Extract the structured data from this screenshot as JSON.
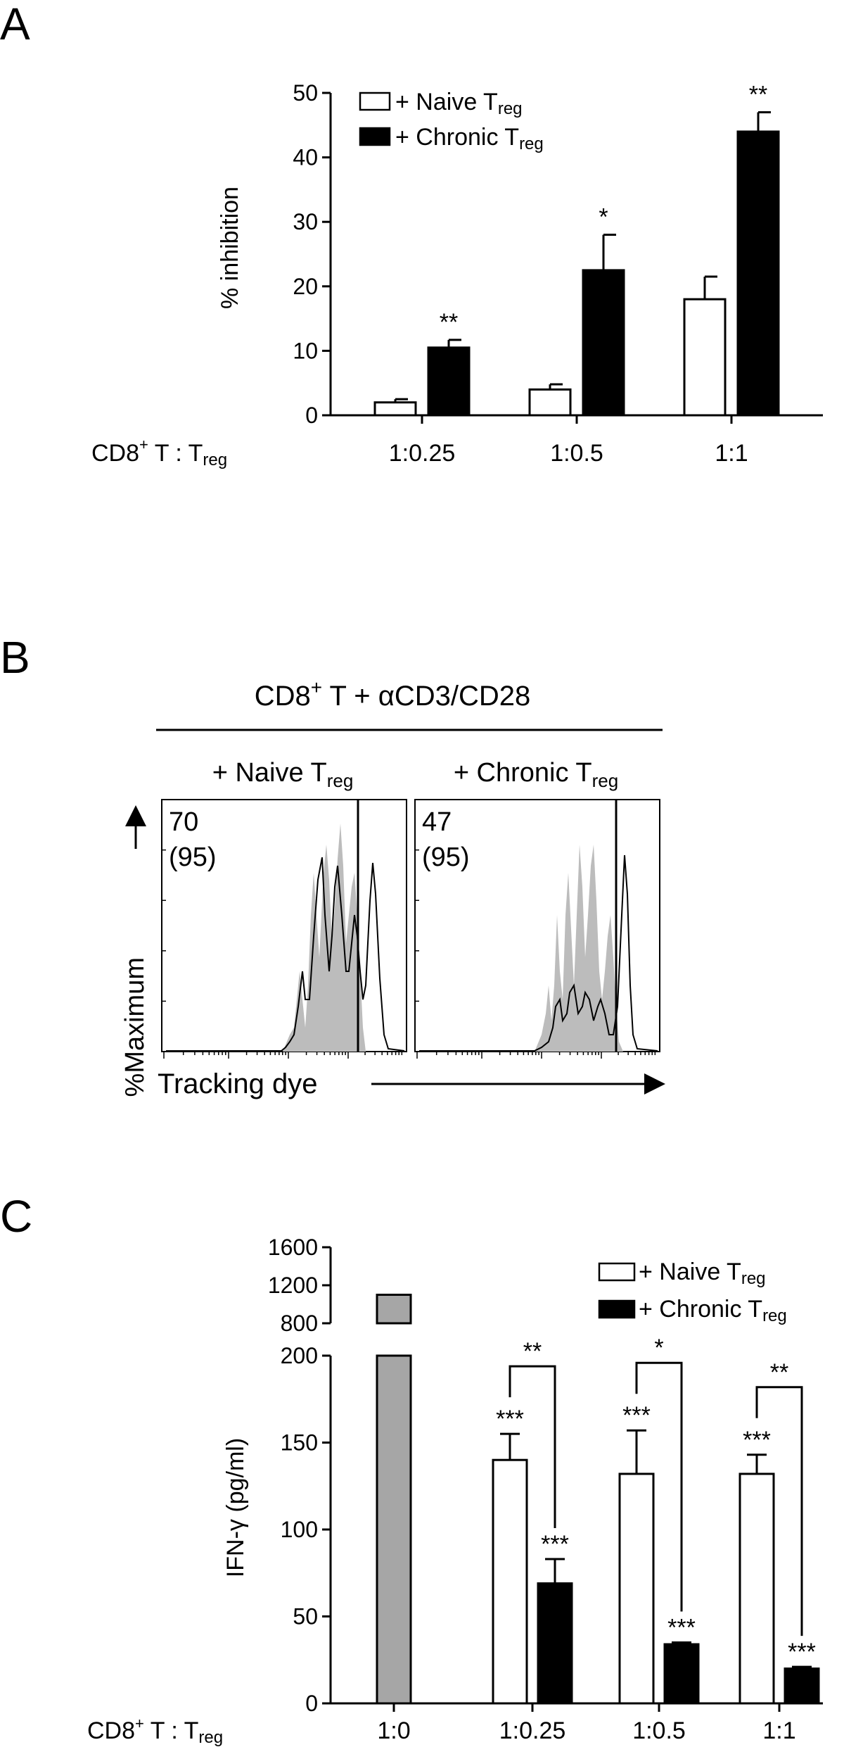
{
  "panels": {
    "a": "A",
    "b": "B",
    "c": "C"
  },
  "chart_data": [
    {
      "type": "bar",
      "panel": "A",
      "ylabel": "% inhibition",
      "ylim": [
        0,
        50
      ],
      "yticks": [
        "0",
        "10",
        "20",
        "30",
        "40",
        "50"
      ],
      "xlabel_main": "CD8",
      "xlabel_sup": "+",
      "xlabel_rest": " T : T",
      "xlabel_sub": "reg",
      "categories": [
        "1:0.25",
        "1:0.5",
        "1:1"
      ],
      "legend_position": "top-left",
      "series": [
        {
          "name": "+ Naive T",
          "name_sub": "reg",
          "fill": "#ffffff",
          "values": [
            2,
            4,
            18
          ],
          "errors": [
            0.5,
            0.8,
            3.5
          ]
        },
        {
          "name": "+ Chronic T",
          "name_sub": "reg",
          "fill": "#000000",
          "values": [
            10.5,
            22.5,
            44
          ],
          "errors": [
            1.2,
            5.5,
            3.0
          ]
        }
      ],
      "annotations": [
        {
          "category": 0,
          "series": 1,
          "text": "**"
        },
        {
          "category": 1,
          "series": 1,
          "text": "*"
        },
        {
          "category": 2,
          "series": 1,
          "text": "**"
        }
      ]
    },
    {
      "type": "histogram",
      "panel": "B",
      "title_main": "CD8",
      "title_sup": "+",
      "title_rest": " T + αCD3/CD28",
      "ylabel": "%Maximum",
      "xlabel": "Tracking dye",
      "plots": [
        {
          "header": "+ Naive T",
          "header_sub": "reg",
          "pct": "70",
          "pct_ctrl": "(95)"
        },
        {
          "header": "+ Chronic T",
          "header_sub": "reg",
          "pct": "47",
          "pct_ctrl": "(95)"
        }
      ]
    },
    {
      "type": "bar",
      "panel": "C",
      "ylabel": "IFN-γ (pg/ml)",
      "yticks_lower": [
        "0",
        "50",
        "100",
        "150",
        "200"
      ],
      "yticks_upper": [
        "800",
        "1200",
        "1600"
      ],
      "xlabel_main": "CD8",
      "xlabel_sup": "+",
      "xlabel_rest": " T : T",
      "xlabel_sub": "reg",
      "categories": [
        "1:0",
        "1:0.25",
        "1:0.5",
        "1:1"
      ],
      "legend_position": "top-right",
      "series": [
        {
          "name": "+ Naive T",
          "name_sub": "reg",
          "fill": "#ffffff",
          "values": [
            null,
            140,
            132,
            132
          ],
          "errors": [
            null,
            15,
            25,
            11
          ]
        },
        {
          "name": "+ Chronic T",
          "name_sub": "reg",
          "fill": "#000000",
          "values": [
            null,
            69,
            34,
            20
          ],
          "errors": [
            null,
            14,
            1,
            1
          ]
        }
      ],
      "control": {
        "category": 0,
        "value": 1100,
        "fill": "#a6a6a6"
      },
      "annotations": [
        {
          "category": 1,
          "series": 0,
          "text": "***"
        },
        {
          "category": 1,
          "series": 1,
          "text": "***"
        },
        {
          "category": 2,
          "series": 0,
          "text": "***"
        },
        {
          "category": 2,
          "series": 1,
          "text": "***"
        },
        {
          "category": 3,
          "series": 0,
          "text": "***"
        },
        {
          "category": 3,
          "series": 1,
          "text": "***"
        }
      ],
      "brackets": [
        {
          "category": 1,
          "text": "**"
        },
        {
          "category": 2,
          "text": "*"
        },
        {
          "category": 3,
          "text": "**"
        }
      ]
    }
  ]
}
